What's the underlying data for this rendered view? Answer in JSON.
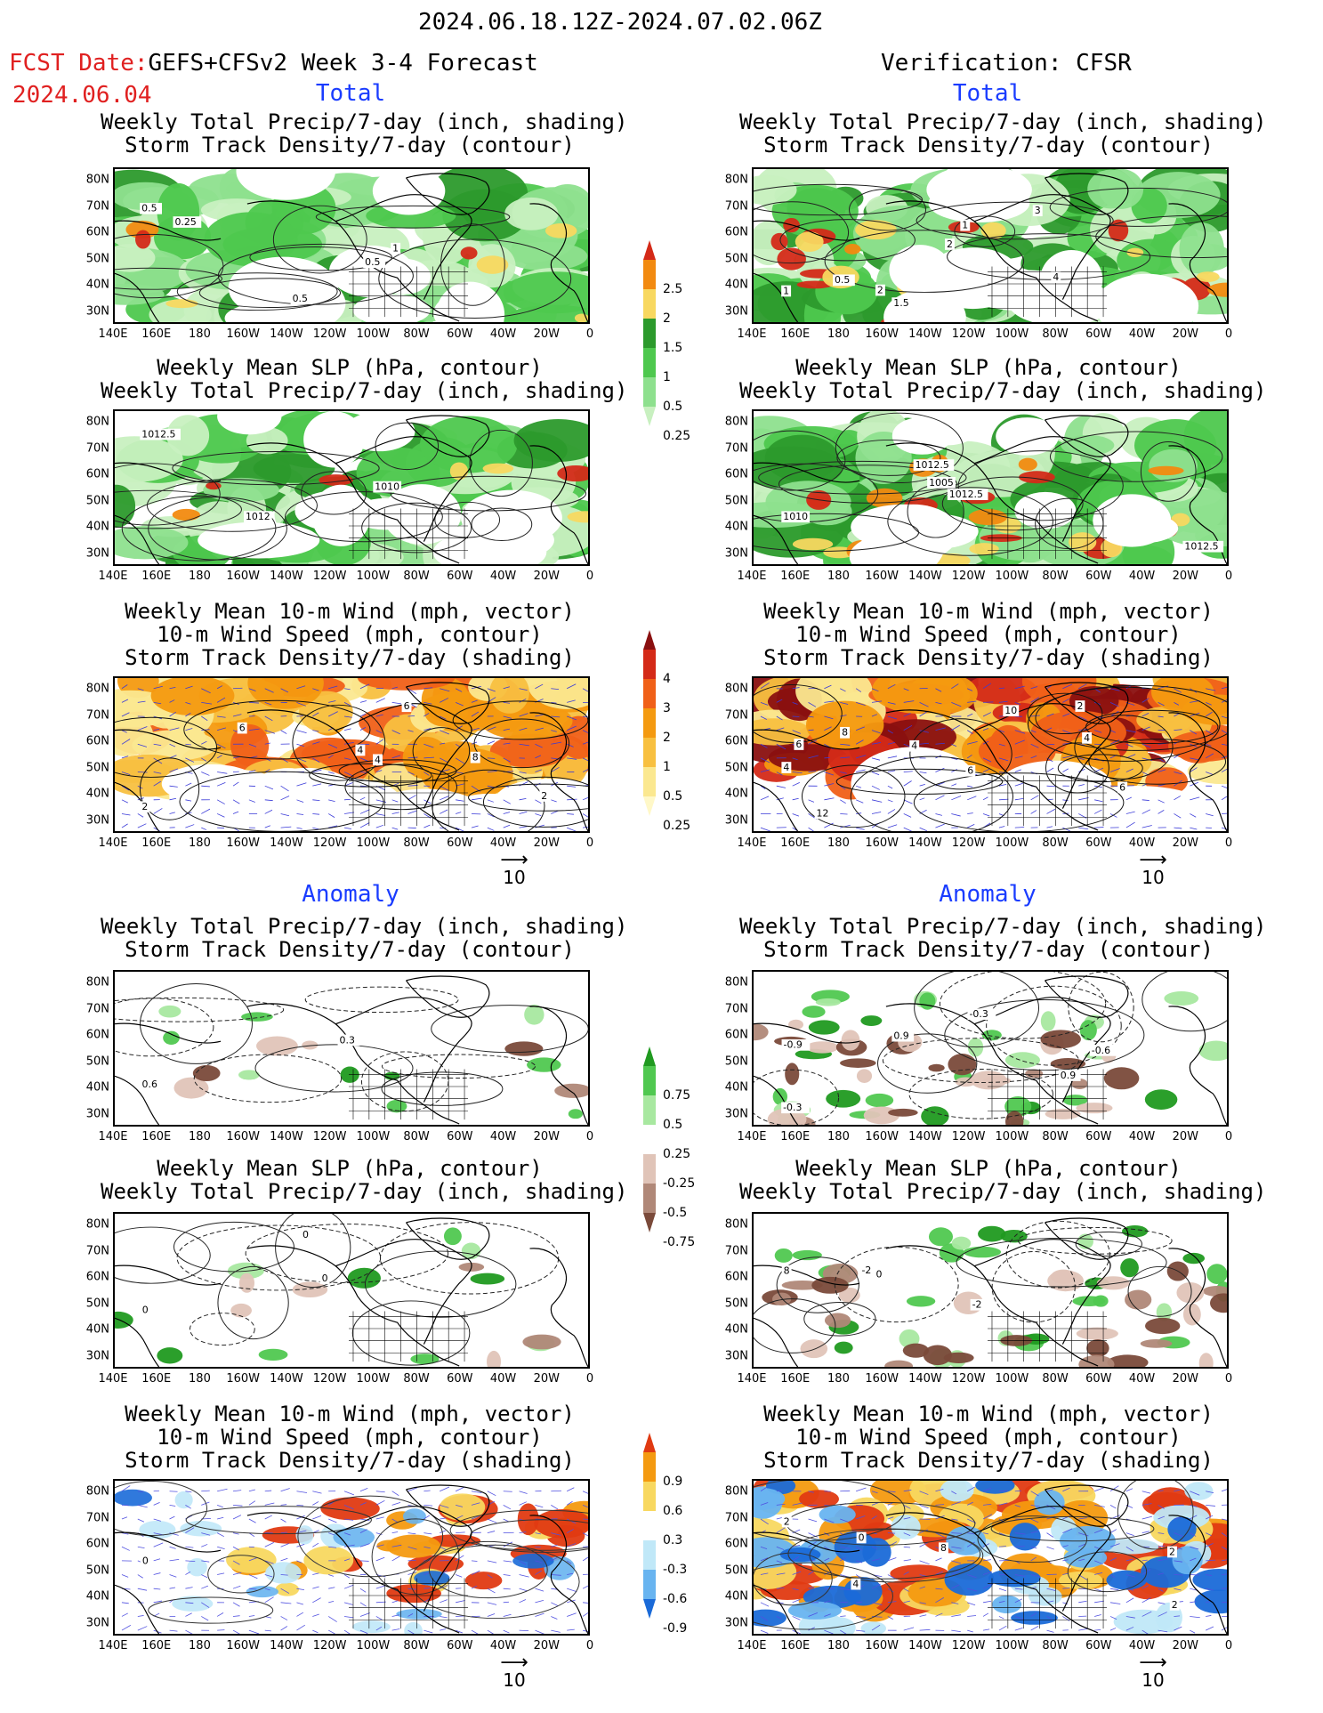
{
  "header": {
    "date_range": "2024.06.18.12Z-2024.07.02.06Z",
    "fcst_label": "FCST Date:",
    "fcst_title": "GEFS+CFSv2 Week 3-4 Forecast",
    "fcst_date": "2024.06.04",
    "verification": "Verification: CFSR"
  },
  "sections": {
    "total": "Total",
    "anomaly": "Anomaly"
  },
  "titles": {
    "precip_storm": [
      "Weekly Total Precip/7-day (inch, shading)",
      "Storm Track Density/7-day (contour)"
    ],
    "slp_precip": [
      "Weekly Mean SLP (hPa, contour)",
      "Weekly Total Precip/7-day (inch, shading)"
    ],
    "wind_storm": [
      "Weekly Mean 10-m Wind (mph, vector)",
      "10-m Wind Speed (mph, contour)",
      "Storm Track Density/7-day (shading)"
    ]
  },
  "axes": {
    "lat_ticks": [
      "80N",
      "70N",
      "60N",
      "50N",
      "40N",
      "30N"
    ],
    "lon_ticks": [
      "140E",
      "160E",
      "180",
      "160W",
      "140W",
      "120W",
      "100W",
      "80W",
      "60W",
      "40W",
      "20W",
      "0"
    ]
  },
  "colorbars": {
    "precip_total": {
      "labels": [
        "2.5",
        "2",
        "1.5",
        "1",
        "0.5",
        "0.25"
      ],
      "colors": [
        "#d42a18",
        "#f28a10",
        "#f8d860",
        "#2c9a2c",
        "#4ec84e",
        "#8ee08e",
        "#c8f0c0"
      ]
    },
    "storm_total": {
      "labels": [
        "4",
        "3",
        "2",
        "1",
        "0.5",
        "0.25"
      ],
      "colors": [
        "#8a1010",
        "#d42a18",
        "#f06018",
        "#f49a10",
        "#f8c040",
        "#fbe890",
        "#fff8c8"
      ]
    },
    "precip_anom": {
      "labels": [
        "0.75",
        "0.5",
        "0.25",
        "-0.25",
        "-0.5",
        "-0.75"
      ],
      "colors": [
        "#209a20",
        "#50c850",
        "#a8e8a0",
        "#ffffff",
        "#e0c4b8",
        "#b08878",
        "#7a4a3a"
      ]
    },
    "storm_anom": {
      "labels": [
        "0.9",
        "0.6",
        "0.3",
        "-0.3",
        "-0.6",
        "-0.9"
      ],
      "colors": [
        "#e03a12",
        "#f49a10",
        "#f8d860",
        "#ffffff",
        "#c0e8f8",
        "#68b4f0",
        "#1a6ad8"
      ]
    }
  },
  "reference_vector": {
    "value": "10"
  },
  "panels": [
    {
      "id": "fcst-total-precip",
      "contours": [
        "0.5",
        "1",
        "0.5",
        "0.25",
        "0.5"
      ]
    },
    {
      "id": "fcst-total-slp",
      "contours": [
        "1012.5",
        "1010",
        "1012"
      ]
    },
    {
      "id": "fcst-total-wind",
      "contours": [
        "2",
        "4",
        "2",
        "4",
        "6",
        "8",
        "6"
      ]
    },
    {
      "id": "fcst-anom-precip",
      "contours": [
        "0.6",
        "0.3"
      ]
    },
    {
      "id": "fcst-anom-slp",
      "contours": [
        "0",
        "0",
        "0"
      ]
    },
    {
      "id": "fcst-anom-wind",
      "contours": [
        "0"
      ]
    },
    {
      "id": "verif-total-precip",
      "contours": [
        "1",
        "2",
        "3",
        "2",
        "1.5",
        "1",
        "4",
        "0.5"
      ]
    },
    {
      "id": "verif-total-slp",
      "contours": [
        "1010",
        "1005",
        "1012.5",
        "1012.5",
        "1012.5"
      ]
    },
    {
      "id": "verif-total-wind",
      "contours": [
        "4",
        "4",
        "6",
        "2",
        "10",
        "6",
        "8",
        "12",
        "6",
        "4"
      ]
    },
    {
      "id": "verif-anom-precip",
      "contours": [
        "-0.9",
        "0.9",
        "-0.6",
        "-0.3",
        "0.9",
        "-0.3"
      ]
    },
    {
      "id": "verif-anom-slp",
      "contours": [
        "8",
        "0",
        "-2",
        "-2"
      ]
    },
    {
      "id": "verif-anom-wind",
      "contours": [
        "2",
        "0",
        "4",
        "2",
        "2",
        "8"
      ]
    }
  ]
}
